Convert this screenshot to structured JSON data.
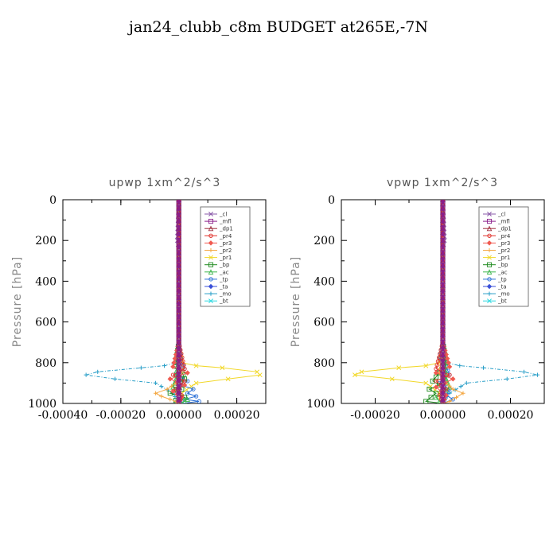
{
  "figure_title": "jan24_clubb_c8m  BUDGET at265E,-7N",
  "legend_entries": [
    "_cl",
    "_mfl",
    "_dp1",
    "_pr4",
    "_pr3",
    "_pr2",
    "_pr1",
    "_bp",
    "_ac",
    "_tp",
    "_ta",
    "_mo",
    "_bt"
  ],
  "colors": {
    "_cl": "#8a5aa8",
    "_mfl": "#8b1f8b",
    "_dp1": "#9e2a3a",
    "_pr4": "#e0302a",
    "_pr3": "#f05a50",
    "_pr2": "#f4a742",
    "_pr1": "#f2d82a",
    "_bp": "#1f8a1f",
    "_ac": "#3ab54a",
    "_tp": "#2a6fd6",
    "_ta": "#3a4fd8",
    "_mo": "#2a9fc8",
    "_bt": "#2ad8e0"
  },
  "chart_data": [
    {
      "type": "line",
      "title": "upwp   1xm^2/s^3",
      "ylabel": "Pressure  [hPa]",
      "xlim": [
        -0.0004,
        0.0003
      ],
      "ylim": [
        1000,
        0
      ],
      "xticks": [
        -0.0004,
        -0.0002,
        0.0,
        0.0002
      ],
      "xtick_labels": [
        "-0.00040",
        "-0.00020",
        "0.00000",
        "0.00020"
      ],
      "yticks": [
        0,
        200,
        400,
        600,
        800,
        1000
      ],
      "ytick_labels": [
        "0",
        "200",
        "400",
        "600",
        "800",
        "1000"
      ],
      "legend_position": "top-right",
      "series": [
        {
          "name": "_mo",
          "x": [
            0.0,
            0.0,
            -1e-05,
            -5e-05,
            -0.00013,
            -0.00028,
            -0.00032,
            -0.00022,
            -8e-05,
            -2e-05,
            0.0
          ],
          "y": [
            0,
            700,
            800,
            815,
            825,
            845,
            860,
            880,
            900,
            950,
            1000
          ]
        },
        {
          "name": "_pr1",
          "x": [
            0.0,
            0.0,
            1e-05,
            6e-05,
            0.00015,
            0.00027,
            0.00028,
            0.00017,
            6e-05,
            1e-05,
            0.0
          ],
          "y": [
            0,
            700,
            800,
            815,
            825,
            845,
            860,
            880,
            900,
            950,
            1000
          ]
        },
        {
          "name": "_tp",
          "x": [
            0.0,
            0.0,
            1e-05,
            2e-05,
            -1e-05,
            3e-05,
            1e-05,
            5e-05,
            3e-05,
            6e-05,
            2e-05,
            7e-05,
            1e-05
          ],
          "y": [
            0,
            700,
            800,
            830,
            860,
            890,
            910,
            930,
            950,
            965,
            980,
            990,
            1000
          ]
        },
        {
          "name": "_bp",
          "x": [
            0.0,
            0.0,
            -1e-05,
            1e-05,
            2e-05,
            -1e-05,
            1e-05,
            -3e-05,
            2e-05,
            -1e-05,
            0.0
          ],
          "y": [
            0,
            700,
            800,
            840,
            880,
            910,
            930,
            950,
            970,
            985,
            1000
          ]
        },
        {
          "name": "_ac",
          "x": [
            0.0,
            0.0,
            -1e-05,
            -2e-05,
            0.0,
            1e-05,
            3e-05,
            2e-05,
            0.0
          ],
          "y": [
            0,
            700,
            880,
            920,
            950,
            970,
            980,
            990,
            1000
          ]
        },
        {
          "name": "_pr2",
          "x": [
            0.0,
            0.0,
            1e-05,
            -1e-05,
            -4e-05,
            -8e-05,
            -6e-05,
            -3e-05,
            -1e-05,
            0.0
          ],
          "y": [
            0,
            700,
            850,
            900,
            930,
            950,
            965,
            980,
            990,
            1000
          ]
        },
        {
          "name": "_pr3",
          "x": [
            0.0,
            0.0,
            -2e-05,
            3e-05,
            -3e-05,
            2e-05,
            -2e-05,
            1e-05,
            0.0
          ],
          "y": [
            0,
            700,
            820,
            850,
            880,
            910,
            940,
            970,
            1000
          ]
        },
        {
          "name": "_pr4",
          "x": [
            0.0,
            0.0,
            2e-05,
            -2e-05,
            2e-05,
            -1e-05,
            1e-05,
            0.0
          ],
          "y": [
            0,
            700,
            830,
            860,
            890,
            930,
            960,
            1000
          ]
        },
        {
          "name": "_cl",
          "x": [
            0.0,
            -5e-06,
            0.0,
            0.0
          ],
          "y": [
            0,
            200,
            240,
            1000
          ]
        },
        {
          "name": "_dp1",
          "x": [
            0.0,
            0.0
          ],
          "y": [
            0,
            1000
          ]
        },
        {
          "name": "_mfl",
          "x": [
            0.0,
            0.0
          ],
          "y": [
            0,
            1000
          ]
        }
      ]
    },
    {
      "type": "line",
      "title": "vpwp   1xm^2/s^3",
      "ylabel": "Pressure  [hPa]",
      "xlim": [
        -0.0003,
        0.0003
      ],
      "ylim": [
        1000,
        0
      ],
      "xticks": [
        -0.0002,
        0.0,
        0.0002
      ],
      "xtick_labels": [
        "-0.00020",
        "0.00000",
        "0.00020"
      ],
      "yticks": [
        0,
        200,
        400,
        600,
        800,
        1000
      ],
      "ytick_labels": [
        "0",
        "200",
        "400",
        "600",
        "800",
        "1000"
      ],
      "legend_position": "top-right",
      "series": [
        {
          "name": "_mo",
          "x": [
            0.0,
            0.0,
            1e-05,
            5e-05,
            0.00012,
            0.00024,
            0.00028,
            0.00019,
            7e-05,
            2e-05,
            0.0
          ],
          "y": [
            0,
            700,
            800,
            815,
            825,
            845,
            860,
            880,
            900,
            950,
            1000
          ]
        },
        {
          "name": "_pr1",
          "x": [
            0.0,
            0.0,
            -1e-05,
            -5e-05,
            -0.00013,
            -0.00024,
            -0.00026,
            -0.00015,
            -5e-05,
            -1e-05,
            0.0
          ],
          "y": [
            0,
            700,
            800,
            815,
            825,
            845,
            860,
            880,
            900,
            950,
            1000
          ]
        },
        {
          "name": "_tp",
          "x": [
            0.0,
            0.0,
            -1e-05,
            1e-05,
            2e-05,
            -1e-05,
            2e-05,
            1e-05,
            3e-05,
            0.0
          ],
          "y": [
            0,
            700,
            780,
            820,
            860,
            900,
            930,
            960,
            980,
            1000
          ]
        },
        {
          "name": "_bp",
          "x": [
            0.0,
            0.0,
            1e-05,
            -1e-05,
            -3e-05,
            -1e-05,
            -4e-05,
            -2e-05,
            -5e-05,
            0.0
          ],
          "y": [
            0,
            700,
            800,
            850,
            890,
            910,
            930,
            950,
            990,
            1000
          ]
        },
        {
          "name": "_ac",
          "x": [
            0.0,
            0.0,
            1e-05,
            2e-05,
            0.0,
            -2e-05,
            -1e-05,
            0.0
          ],
          "y": [
            0,
            700,
            880,
            920,
            950,
            970,
            990,
            1000
          ]
        },
        {
          "name": "_pr2",
          "x": [
            0.0,
            0.0,
            -1e-05,
            1e-05,
            3e-05,
            6e-05,
            4e-05,
            2e-05,
            0.0
          ],
          "y": [
            0,
            700,
            850,
            900,
            930,
            950,
            970,
            990,
            1000
          ]
        },
        {
          "name": "_pr3",
          "x": [
            0.0,
            0.0,
            2e-05,
            -2e-05,
            3e-05,
            -2e-05,
            1e-05,
            0.0
          ],
          "y": [
            0,
            700,
            820,
            850,
            880,
            920,
            960,
            1000
          ]
        },
        {
          "name": "_pr4",
          "x": [
            0.0,
            0.0,
            -2e-05,
            2e-05,
            -2e-05,
            1e-05,
            -1e-05,
            0.0
          ],
          "y": [
            0,
            700,
            830,
            860,
            890,
            930,
            960,
            1000
          ]
        },
        {
          "name": "_cl",
          "x": [
            0.0,
            5e-06,
            0.0,
            0.0
          ],
          "y": [
            0,
            200,
            240,
            1000
          ]
        },
        {
          "name": "_dp1",
          "x": [
            0.0,
            0.0
          ],
          "y": [
            0,
            1000
          ]
        },
        {
          "name": "_mfl",
          "x": [
            0.0,
            0.0
          ],
          "y": [
            0,
            1000
          ]
        }
      ]
    }
  ]
}
